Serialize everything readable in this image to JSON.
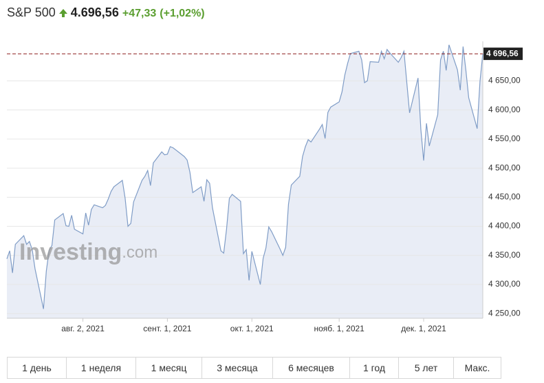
{
  "header": {
    "title": "S&P 500",
    "price": "4.696,56",
    "change": "+47,33",
    "change_pct": "(+1,02%)"
  },
  "watermark": {
    "brand": "Investing",
    "suffix": ".com"
  },
  "chart_data": {
    "type": "area",
    "color": "#7f9cc6",
    "fill": "#e9edf6",
    "grid": true,
    "x": [
      "2021-07-06",
      "2021-07-07",
      "2021-07-08",
      "2021-07-09",
      "2021-07-12",
      "2021-07-13",
      "2021-07-14",
      "2021-07-15",
      "2021-07-16",
      "2021-07-19",
      "2021-07-20",
      "2021-07-21",
      "2021-07-22",
      "2021-07-23",
      "2021-07-26",
      "2021-07-27",
      "2021-07-28",
      "2021-07-29",
      "2021-07-30",
      "2021-08-02",
      "2021-08-03",
      "2021-08-04",
      "2021-08-05",
      "2021-08-06",
      "2021-08-09",
      "2021-08-10",
      "2021-08-11",
      "2021-08-12",
      "2021-08-13",
      "2021-08-16",
      "2021-08-17",
      "2021-08-18",
      "2021-08-19",
      "2021-08-20",
      "2021-08-23",
      "2021-08-24",
      "2021-08-25",
      "2021-08-26",
      "2021-08-27",
      "2021-08-30",
      "2021-08-31",
      "2021-09-01",
      "2021-09-02",
      "2021-09-03",
      "2021-09-07",
      "2021-09-08",
      "2021-09-09",
      "2021-09-10",
      "2021-09-13",
      "2021-09-14",
      "2021-09-15",
      "2021-09-16",
      "2021-09-17",
      "2021-09-20",
      "2021-09-21",
      "2021-09-22",
      "2021-09-23",
      "2021-09-24",
      "2021-09-27",
      "2021-09-28",
      "2021-09-29",
      "2021-09-30",
      "2021-10-01",
      "2021-10-04",
      "2021-10-05",
      "2021-10-06",
      "2021-10-07",
      "2021-10-08",
      "2021-10-11",
      "2021-10-12",
      "2021-10-13",
      "2021-10-14",
      "2021-10-15",
      "2021-10-18",
      "2021-10-19",
      "2021-10-20",
      "2021-10-21",
      "2021-10-22",
      "2021-10-25",
      "2021-10-26",
      "2021-10-27",
      "2021-10-28",
      "2021-10-29",
      "2021-11-01",
      "2021-11-02",
      "2021-11-03",
      "2021-11-04",
      "2021-11-05",
      "2021-11-08",
      "2021-11-09",
      "2021-11-10",
      "2021-11-11",
      "2021-11-12",
      "2021-11-15",
      "2021-11-16",
      "2021-11-17",
      "2021-11-18",
      "2021-11-19",
      "2021-11-22",
      "2021-11-23",
      "2021-11-24",
      "2021-11-26",
      "2021-11-29",
      "2021-11-30",
      "2021-12-01",
      "2021-12-02",
      "2021-12-03",
      "2021-12-06",
      "2021-12-07",
      "2021-12-08",
      "2021-12-09",
      "2021-12-10",
      "2021-12-13",
      "2021-12-14",
      "2021-12-15",
      "2021-12-16",
      "2021-12-17",
      "2021-12-20",
      "2021-12-21",
      "2021-12-22"
    ],
    "values": [
      4344,
      4358,
      4320,
      4369,
      4384,
      4369,
      4374,
      4360,
      4327,
      4258,
      4323,
      4359,
      4367,
      4411,
      4422,
      4401,
      4400,
      4419,
      4395,
      4387,
      4423,
      4402,
      4429,
      4437,
      4432,
      4436,
      4447,
      4460,
      4468,
      4479,
      4448,
      4400,
      4405,
      4442,
      4479,
      4486,
      4496,
      4470,
      4509,
      4528,
      4523,
      4524,
      4537,
      4535,
      4520,
      4514,
      4493,
      4458,
      4468,
      4443,
      4480,
      4474,
      4432,
      4358,
      4354,
      4395,
      4448,
      4455,
      4443,
      4353,
      4360,
      4307,
      4357,
      4300,
      4345,
      4363,
      4399,
      4391,
      4361,
      4350,
      4364,
      4438,
      4471,
      4486,
      4520,
      4537,
      4549,
      4545,
      4567,
      4575,
      4551,
      4596,
      4605,
      4614,
      4631,
      4660,
      4680,
      4697,
      4701,
      4686,
      4647,
      4650,
      4683,
      4682,
      4701,
      4688,
      4704,
      4698,
      4682,
      4690,
      4701,
      4595,
      4655,
      4567,
      4513,
      4577,
      4538,
      4592,
      4686,
      4701,
      4668,
      4712,
      4669,
      4634,
      4709,
      4668,
      4621,
      4568,
      4649,
      4696.56
    ],
    "xlim": [
      "2021-07-06",
      "2021-12-22"
    ],
    "xticks": [
      {
        "value": "2021-08-02",
        "label": "авг. 2, 2021"
      },
      {
        "value": "2021-09-01",
        "label": "сент. 1, 2021"
      },
      {
        "value": "2021-10-01",
        "label": "окт. 1, 2021"
      },
      {
        "value": "2021-11-01",
        "label": "нояб. 1, 2021"
      },
      {
        "value": "2021-12-01",
        "label": "дек. 1, 2021"
      }
    ],
    "ylim": [
      4242,
      4718
    ],
    "yticks": [
      {
        "value": 4250,
        "label": "4 250,00"
      },
      {
        "value": 4300,
        "label": "4 300,00"
      },
      {
        "value": 4350,
        "label": "4 350,00"
      },
      {
        "value": 4400,
        "label": "4 400,00"
      },
      {
        "value": 4450,
        "label": "4 450,00"
      },
      {
        "value": 4500,
        "label": "4 500,00"
      },
      {
        "value": 4550,
        "label": "4 550,00"
      },
      {
        "value": 4600,
        "label": "4 600,00"
      },
      {
        "value": 4650,
        "label": "4 650,00"
      }
    ],
    "ref_line": {
      "value": 4696.56,
      "label": "4 696,56",
      "color": "#8b1a1a"
    }
  },
  "periods": [
    "1 день",
    "1 неделя",
    "1 месяц",
    "3 месяца",
    "6 месяцев",
    "1 год",
    "5 лет",
    "Макс."
  ]
}
